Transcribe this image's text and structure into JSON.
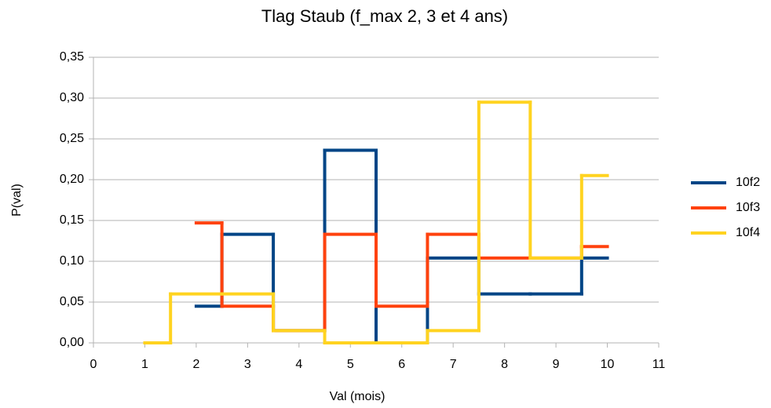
{
  "chart_data": {
    "type": "step",
    "title": "Tlag Staub (f_max 2, 3 et 4 ans)",
    "x_label": "Val (mois)",
    "y_label": "P(val)",
    "x": [
      1,
      2,
      3,
      4,
      5,
      6,
      7,
      8,
      9,
      10
    ],
    "series": [
      {
        "name": "10f2",
        "color": "#004586",
        "values": [
          null,
          0.045,
          0.133,
          0.015,
          0.236,
          0,
          0.104,
          0.06,
          0.06,
          0.104
        ]
      },
      {
        "name": "10f3",
        "color": "#ff420e",
        "values": [
          null,
          0.147,
          0.045,
          0.015,
          0.133,
          0.045,
          0.133,
          0.104,
          0.104,
          0.118
        ]
      },
      {
        "name": "10f4",
        "color": "#ffd320",
        "values": [
          0,
          0.06,
          0.06,
          0.015,
          0,
          0,
          0.015,
          0.295,
          0.104,
          0.205
        ]
      }
    ],
    "xlim": [
      0,
      11
    ],
    "xticks": [
      0,
      1,
      2,
      3,
      4,
      5,
      6,
      7,
      8,
      9,
      10,
      11
    ],
    "ylim": [
      0,
      0.35
    ],
    "yticks": [
      {
        "value": 0,
        "label": "0,00"
      },
      {
        "value": 0.05,
        "label": "0,05"
      },
      {
        "value": 0.1,
        "label": "0,10"
      },
      {
        "value": 0.15,
        "label": "0,15"
      },
      {
        "value": 0.2,
        "label": "0,20"
      },
      {
        "value": 0.25,
        "label": "0,25"
      },
      {
        "value": 0.3,
        "label": "0,30"
      },
      {
        "value": 0.35,
        "label": "0,35"
      }
    ],
    "grid": true,
    "legend": "right"
  }
}
